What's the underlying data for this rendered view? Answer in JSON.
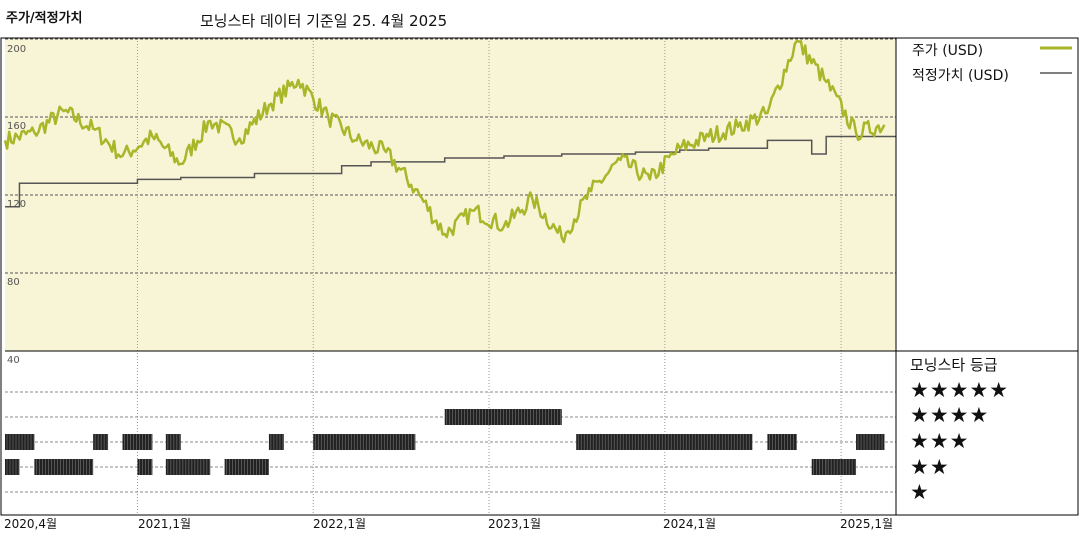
{
  "header": {
    "title": "주가/적정가치",
    "subtitle": "모닝스타 데이터 기준일 25. 4월 2025"
  },
  "legend": {
    "price_label": "주가 (USD)",
    "fair_value_label": "적정가치 (USD)",
    "price_color": "#a8b62a",
    "fair_value_color": "#555555"
  },
  "rating": {
    "title": "모닝스타 등급",
    "stars": [
      "★★★★★",
      "★★★★",
      "★★★",
      "★★",
      "★"
    ]
  },
  "chart_data": {
    "type": "line",
    "x_axis": {
      "tick_labels": [
        "2020,4월",
        "2021,1월",
        "2022,1월",
        "2023,1월",
        "2024,1월",
        "2025,1월"
      ],
      "range": [
        "2020-04",
        "2025-04"
      ]
    },
    "y_axis": {
      "tick_labels": [
        "200",
        "160",
        "120",
        "80",
        "40"
      ],
      "ylim": [
        40,
        200
      ]
    },
    "grid": "dashed horizontal, dotted vertical",
    "background_color": "#f8f4d6",
    "series": [
      {
        "name": "주가 (USD)",
        "x": [
          "2020-04",
          "2020-06",
          "2020-08",
          "2020-10",
          "2020-12",
          "2021-02",
          "2021-04",
          "2021-06",
          "2021-08",
          "2021-10",
          "2021-12",
          "2022-02",
          "2022-04",
          "2022-06",
          "2022-08",
          "2022-10",
          "2022-12",
          "2023-02",
          "2023-04",
          "2023-06",
          "2023-08",
          "2023-10",
          "2023-12",
          "2024-02",
          "2024-04",
          "2024-06",
          "2024-08",
          "2024-10",
          "2024-12",
          "2025-02",
          "2025-04"
        ],
        "y": [
          148,
          152,
          163,
          154,
          140,
          150,
          136,
          158,
          149,
          166,
          179,
          160,
          148,
          142,
          123,
          100,
          112,
          104,
          118,
          98,
          122,
          138,
          128,
          144,
          150,
          155,
          162,
          199,
          178,
          152,
          156
        ]
      },
      {
        "name": "적정가치 (USD)",
        "x": [
          "2020-04",
          "2020-05",
          "2021-01",
          "2021-04",
          "2021-09",
          "2022-03",
          "2022-05",
          "2022-10",
          "2023-02",
          "2023-06",
          "2023-11",
          "2024-02",
          "2024-04",
          "2024-08",
          "2024-11",
          "2024-12",
          "2024-12",
          "2025-04"
        ],
        "y": [
          114,
          126,
          128,
          129,
          131,
          135,
          137,
          139,
          140,
          141,
          142,
          143,
          144,
          148,
          141,
          141,
          150,
          150
        ]
      }
    ],
    "rating_bars": [
      {
        "stars": 4,
        "segments": [
          [
            "2022-10",
            "2023-06"
          ]
        ]
      },
      {
        "stars": 3,
        "segments": [
          [
            "2020-04",
            "2020-06"
          ],
          [
            "2020-10",
            "2020-11"
          ],
          [
            "2020-12",
            "2021-02"
          ],
          [
            "2021-03",
            "2021-04"
          ],
          [
            "2021-10",
            "2021-11"
          ],
          [
            "2022-01",
            "2022-08"
          ],
          [
            "2023-07",
            "2024-07"
          ],
          [
            "2024-08",
            "2024-10"
          ],
          [
            "2025-02",
            "2025-04"
          ]
        ]
      },
      {
        "stars": 2,
        "segments": [
          [
            "2020-04",
            "2020-05"
          ],
          [
            "2020-06",
            "2020-09"
          ],
          [
            "2020-09",
            "2020-10"
          ],
          [
            "2021-01",
            "2021-02"
          ],
          [
            "2021-03",
            "2021-06"
          ],
          [
            "2021-07",
            "2021-10"
          ],
          [
            "2024-11",
            "2024-12"
          ],
          [
            "2024-12",
            "2025-02"
          ]
        ]
      }
    ]
  }
}
